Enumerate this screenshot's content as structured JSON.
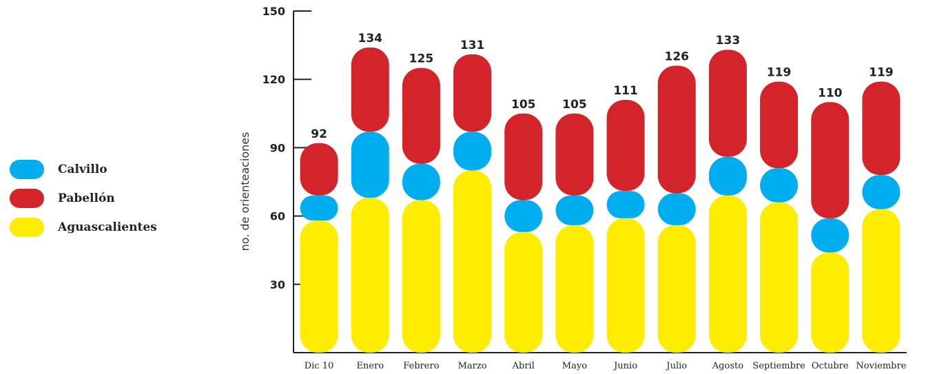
{
  "colors": {
    "Calvillo": "#00AEEF",
    "Pabellón": "#D3242B",
    "Aguascalientes": "#FFED00"
  },
  "legend": {
    "items": [
      {
        "label": "Calvillo",
        "color": "#00AEEF"
      },
      {
        "label": "Pabellón",
        "color": "#D3242B"
      },
      {
        "label": "Aguascalientes",
        "color": "#FFED00"
      }
    ],
    "placement": "left"
  },
  "chart_data": {
    "type": "bar",
    "stacked": true,
    "title": "",
    "xlabel": "",
    "ylabel": "no. de orienteaciones",
    "ylim": [
      0,
      150
    ],
    "yticks": [
      30,
      60,
      90,
      120,
      150
    ],
    "categories": [
      "Dic 10",
      "Enero",
      "Febrero",
      "Marzo",
      "Abril",
      "Mayo",
      "Junio",
      "Julio",
      "Agosto",
      "Septiembre",
      "Octubre",
      "Noviembre"
    ],
    "series": [
      {
        "name": "Aguascalientes",
        "values": [
          58,
          68,
          67,
          80,
          53,
          56,
          59,
          56,
          69,
          66,
          44,
          63
        ]
      },
      {
        "name": "Calvillo",
        "values": [
          11,
          29,
          16,
          17,
          14,
          13,
          12,
          14,
          17,
          15,
          15,
          15
        ]
      },
      {
        "name": "Pabellón",
        "values": [
          23,
          37,
          42,
          34,
          38,
          36,
          40,
          56,
          47,
          38,
          51,
          41
        ]
      }
    ],
    "totals": [
      92,
      134,
      125,
      131,
      105,
      105,
      111,
      126,
      133,
      119,
      110,
      119
    ],
    "grid": false,
    "legend_position": "left"
  }
}
